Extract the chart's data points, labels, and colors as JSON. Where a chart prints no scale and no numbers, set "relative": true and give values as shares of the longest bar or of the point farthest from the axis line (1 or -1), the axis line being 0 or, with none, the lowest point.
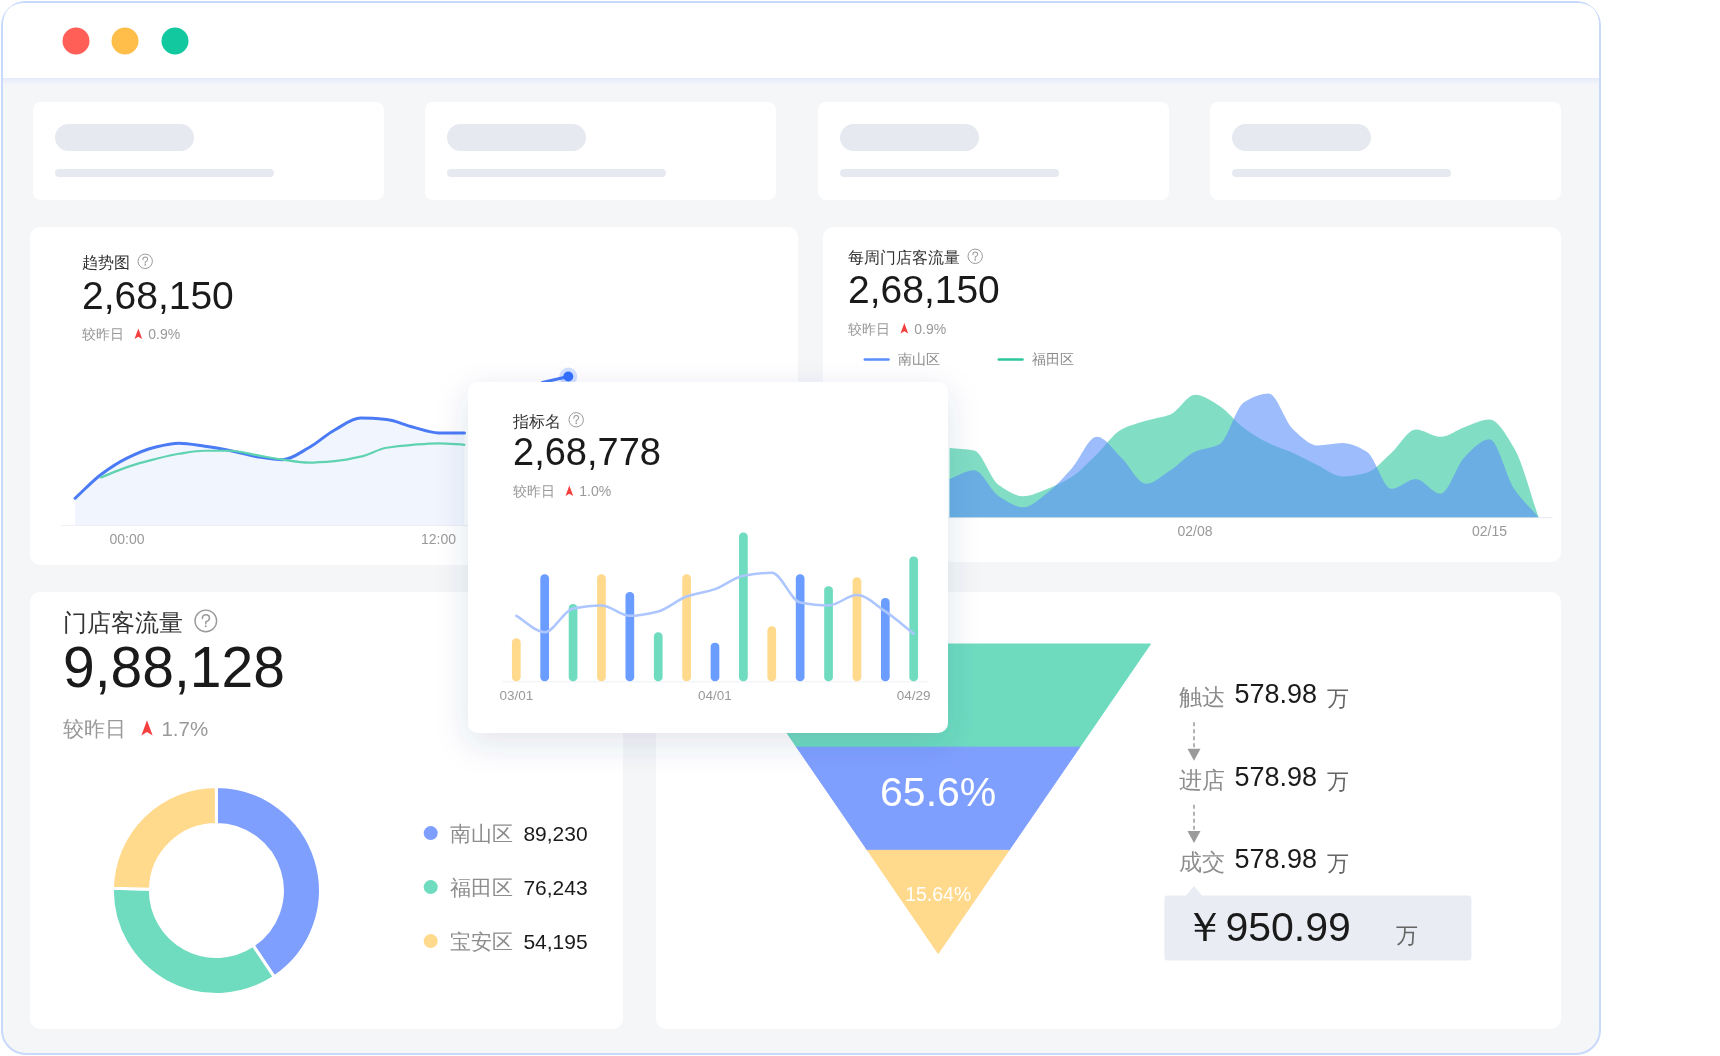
{
  "chart_data": [
    {
      "type": "line",
      "title": "趋势图",
      "subtitle": "2,68,150",
      "annotations": [
        "较昨日",
        "0.9%"
      ],
      "relative": true,
      "categories": [
        null,
        null,
        "00:00",
        null,
        null,
        null,
        null,
        null,
        null,
        null,
        null,
        null,
        null,
        null,
        "12:00",
        null,
        null,
        null,
        null,
        null
      ],
      "series": [
        {
          "type": "area",
          "color": "#4a7bf5",
          "values": [
            0.18,
            0.34,
            0.45,
            0.52,
            0.55,
            0.53,
            0.5,
            0.46,
            0.44,
            0.52,
            0.64,
            0.72,
            0.71,
            0.66,
            0.62,
            0.62,
            null,
            null,
            0.96,
            1
          ]
        },
        {
          "color": "#5fd3b0",
          "values": [
            null,
            0.32,
            0.39,
            0.44,
            0.48,
            0.5,
            0.5,
            0.47,
            0.44,
            0.42,
            0.43,
            0.46,
            0.52,
            0.54,
            0.55,
            0.54,
            null,
            null,
            null,
            null
          ]
        },
        {
          "type": "scatter",
          "color": "#3370ff",
          "values": [
            null,
            null,
            null,
            null,
            null,
            null,
            null,
            null,
            null,
            null,
            null,
            null,
            null,
            null,
            null,
            null,
            null,
            null,
            null,
            1
          ]
        }
      ]
    },
    {
      "type": "area",
      "title": "每周门店客流量",
      "subtitle": "2,68,150",
      "annotations": [
        "较昨日",
        "0.9%"
      ],
      "legend": "top left",
      "relative": true,
      "categories": [
        null,
        null,
        null,
        null,
        null,
        null,
        null,
        null,
        null,
        null,
        "02/08",
        null,
        null,
        null,
        null,
        null,
        null,
        null,
        null,
        null,
        null,
        null,
        "02/15",
        null,
        null
      ],
      "series": [
        {
          "name": "南山区",
          "color": "#5b8ff9",
          "values": [
            0.31,
            0.38,
            0.17,
            0.08,
            0.2,
            0.4,
            0.65,
            0.48,
            0.27,
            0.38,
            0.53,
            0.59,
            0.93,
            1,
            0.71,
            0.58,
            0.6,
            0.53,
            0.23,
            0.31,
            0.19,
            0.49,
            0.63,
            0.23,
            0
          ]
        },
        {
          "name": "福田区",
          "color": "#2dc79d",
          "values": [
            0.56,
            0.54,
            0.26,
            0.17,
            0.23,
            0.33,
            0.51,
            0.71,
            0.78,
            0.83,
            0.99,
            0.9,
            0.72,
            0.6,
            0.52,
            0.42,
            0.33,
            0.36,
            0.52,
            0.71,
            0.65,
            0.73,
            0.79,
            0.56,
            0
          ]
        }
      ]
    },
    {
      "type": "bar",
      "title": "指标名",
      "subtitle": "2,68,778",
      "annotations": [
        "较昨日",
        "1.0%"
      ],
      "relative": true,
      "categories": [
        "03/01",
        null,
        null,
        null,
        null,
        null,
        null,
        "04/01",
        null,
        null,
        null,
        null,
        null,
        null,
        "04/29"
      ],
      "series": [
        {
          "colors": [
            "#ffd98c",
            "#6b9cff",
            "#6fdbbf",
            "#ffd98c",
            "#6b9cff",
            "#6fdbbf",
            "#ffd98c",
            "#6b9cff",
            "#6fdbbf",
            "#ffd98c",
            "#6b9cff",
            "#6fdbbf",
            "#ffd98c",
            "#6b9cff",
            "#6fdbbf"
          ],
          "values": [
            0.29,
            0.72,
            0.52,
            0.72,
            0.6,
            0.33,
            0.72,
            0.26,
            1,
            0.37,
            0.72,
            0.64,
            0.7,
            0.56,
            0.84
          ]
        },
        {
          "type": "line",
          "color": "#adc6ff",
          "values": [
            0.44,
            0.33,
            0.49,
            0.51,
            0.44,
            0.47,
            0.57,
            0.62,
            0.71,
            0.73,
            0.53,
            0.51,
            0.58,
            0.47,
            0.32
          ]
        }
      ]
    },
    {
      "type": "donut",
      "title": "门店客流量",
      "subtitle": "9,88,128",
      "annotations": [
        "较昨日",
        "1.7%"
      ],
      "categories": [
        "南山区",
        "福田区",
        "宝安区"
      ],
      "values": [
        89230,
        76243,
        54195
      ],
      "value_labels": [
        "89,230",
        "76,243",
        "54,195"
      ],
      "colors": [
        "#7f9ffe",
        "#6fdbbf",
        "#ffd98c"
      ],
      "legend": "right"
    },
    {
      "type": "other",
      "categories": [
        "触达",
        "进店",
        "成交"
      ],
      "values": [
        null,
        65.6,
        15.64
      ],
      "value_labels": [
        null,
        "65.6%",
        "15.64%"
      ],
      "colors": [
        "#6edbbf",
        "#7f9ffe",
        "#ffd98c"
      ],
      "annotations": [
        "578.98 万",
        "578.98 万",
        "578.98 万",
        "￥950.99 万"
      ]
    }
  ]
}
